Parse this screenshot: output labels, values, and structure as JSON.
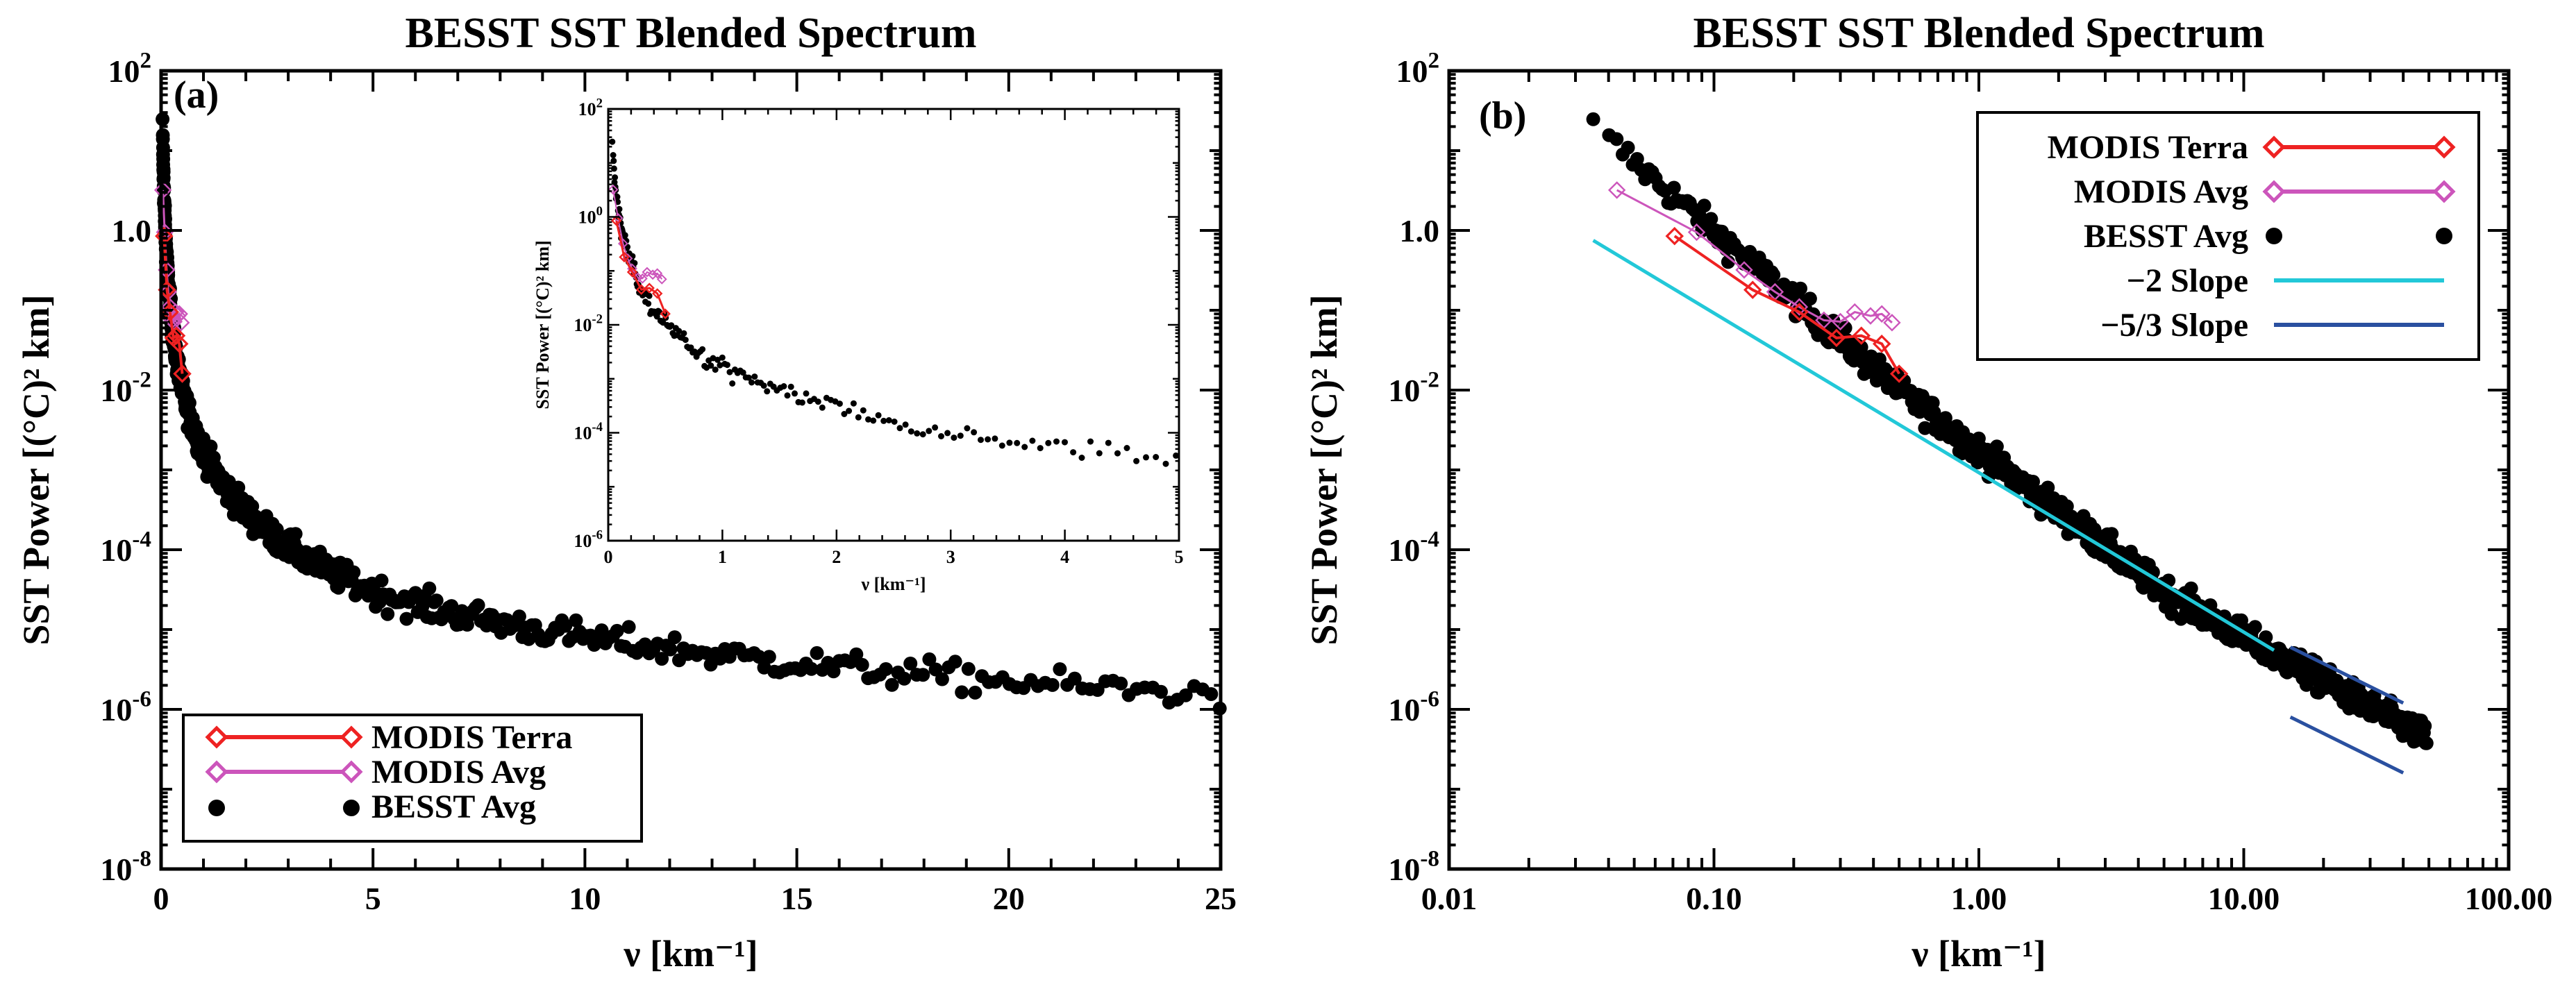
{
  "colors": {
    "background": "#ffffff",
    "besst": "#000000",
    "modis_terra": "#ee2222",
    "modis_avg": "#cc55bb",
    "slope_minus2": "#22c8d8",
    "slope_minus53": "#2a50a0"
  },
  "chart_data": [
    {
      "panel": "(a)",
      "type": "scatter",
      "title": "BESST SST Blended Spectrum",
      "xlabel": "ν [km⁻¹]",
      "ylabel": "SST Power [(°C)² km]",
      "xscale": "linear",
      "yscale": "log",
      "xlim": [
        0,
        25
      ],
      "ylim": [
        1e-08,
        100
      ],
      "x_ticks": [
        0,
        5,
        10,
        15,
        20,
        25
      ],
      "x_tick_labels": [
        "0",
        "5",
        "10",
        "15",
        "20",
        "25"
      ],
      "y_ticks": [
        1e-08,
        1e-06,
        0.0001,
        0.01,
        1,
        100
      ],
      "y_tick_labels": [
        {
          "base": "10",
          "exp": "-8"
        },
        {
          "base": "10",
          "exp": "-6"
        },
        {
          "base": "10",
          "exp": "-4"
        },
        {
          "base": "10",
          "exp": "-2"
        },
        {
          "base": "1.0",
          "exp": ""
        },
        {
          "base": "10",
          "exp": "2"
        }
      ],
      "legend": {
        "position": "bottom-left",
        "entries": [
          "MODIS Terra",
          "MODIS Avg",
          "BESST Avg"
        ]
      },
      "series": [
        {
          "name": "MODIS Terra",
          "marker": "diamond-open-line",
          "x": [
            0.071,
            0.14,
            0.21,
            0.29,
            0.36,
            0.43,
            0.5
          ],
          "y": [
            0.85,
            0.18,
            0.095,
            0.045,
            0.048,
            0.038,
            0.016
          ]
        },
        {
          "name": "MODIS Avg",
          "marker": "diamond-open-line",
          "x": [
            0.043,
            0.086,
            0.13,
            0.17,
            0.21,
            0.26,
            0.3,
            0.34,
            0.39,
            0.43,
            0.47
          ],
          "y": [
            3.2,
            0.95,
            0.32,
            0.17,
            0.11,
            0.075,
            0.072,
            0.095,
            0.085,
            0.09,
            0.07
          ]
        },
        {
          "name": "BESST Avg",
          "marker": "filled-circle",
          "model": "power-law fit",
          "points_from": {
            "nu_min": 0.035,
            "nu_max": 49,
            "count": 650
          },
          "anchors": {
            "x": [
              0.035,
              0.5,
              5,
              10,
              25
            ],
            "y": [
              20,
              0.01,
              3e-05,
              8e-06,
              1.5e-06
            ]
          }
        }
      ],
      "inset": {
        "type": "scatter",
        "xlabel": "ν [km⁻¹]",
        "ylabel": "SST Power [(°C)² km]",
        "xlim": [
          0,
          5
        ],
        "ylim": [
          1e-06,
          100
        ],
        "x_ticks": [
          0,
          1,
          2,
          3,
          4,
          5
        ],
        "x_tick_labels": [
          "0",
          "1",
          "2",
          "3",
          "4",
          "5"
        ],
        "y_ticks": [
          1e-06,
          0.0001,
          0.01,
          1,
          100
        ],
        "y_tick_labels": [
          {
            "base": "10",
            "exp": "-6"
          },
          {
            "base": "10",
            "exp": "-4"
          },
          {
            "base": "10",
            "exp": "-2"
          },
          {
            "base": "10",
            "exp": "0"
          },
          {
            "base": "10",
            "exp": "2"
          }
        ]
      }
    },
    {
      "panel": "(b)",
      "type": "scatter",
      "title": "BESST SST Blended Spectrum",
      "xlabel": "ν [km⁻¹]",
      "ylabel": "SST Power [(°C)² km]",
      "xscale": "log",
      "yscale": "log",
      "xlim": [
        0.01,
        100
      ],
      "ylim": [
        1e-08,
        100
      ],
      "x_ticks": [
        0.01,
        0.1,
        1,
        10,
        100
      ],
      "x_tick_labels": [
        "0.01",
        "0.10",
        "1.00",
        "10.00",
        "100.00"
      ],
      "y_ticks": [
        1e-08,
        1e-06,
        0.0001,
        0.01,
        1,
        100
      ],
      "y_tick_labels": [
        {
          "base": "10",
          "exp": "-8"
        },
        {
          "base": "10",
          "exp": "-6"
        },
        {
          "base": "10",
          "exp": "-4"
        },
        {
          "base": "10",
          "exp": "-2"
        },
        {
          "base": "1.0",
          "exp": ""
        },
        {
          "base": "10",
          "exp": "2"
        }
      ],
      "legend": {
        "position": "top-right",
        "entries": [
          "MODIS Terra",
          "MODIS Avg",
          "BESST Avg",
          "−2 Slope",
          "−5/3 Slope"
        ]
      },
      "series": [
        {
          "name": "MODIS Terra",
          "ref": "panel-a"
        },
        {
          "name": "MODIS Avg",
          "ref": "panel-a"
        },
        {
          "name": "BESST Avg",
          "ref": "panel-a"
        },
        {
          "name": "−2 Slope",
          "type": "line",
          "x": [
            0.035,
            13
          ],
          "y": [
            0.75,
            5.5e-06
          ]
        },
        {
          "name": "−5/3 Slope (upper)",
          "type": "line",
          "x": [
            15,
            40
          ],
          "y": [
            6e-06,
            1.2e-06
          ]
        },
        {
          "name": "−5/3 Slope (lower)",
          "type": "line",
          "x": [
            15,
            40
          ],
          "y": [
            8e-07,
            1.6e-07
          ]
        }
      ]
    }
  ]
}
